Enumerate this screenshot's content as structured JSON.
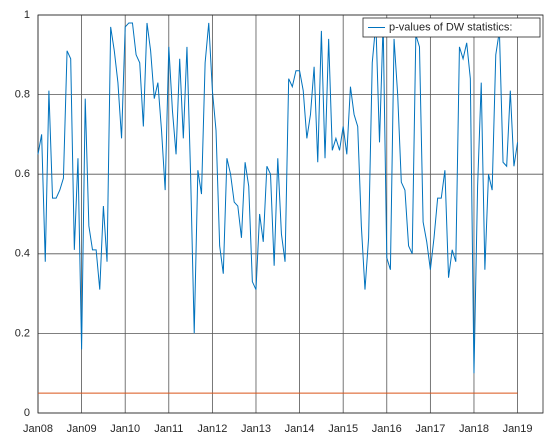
{
  "chart_data": {
    "type": "line",
    "x": [
      0,
      1,
      2,
      3,
      4,
      5,
      6,
      7,
      8,
      9,
      10,
      11,
      12,
      13,
      14,
      15,
      16,
      17,
      18,
      19,
      20,
      21,
      22,
      23,
      24,
      25,
      26,
      27,
      28,
      29,
      30,
      31,
      32,
      33,
      34,
      35,
      36,
      37,
      38,
      39,
      40,
      41,
      42,
      43,
      44,
      45,
      46,
      47,
      48,
      49,
      50,
      51,
      52,
      53,
      54,
      55,
      56,
      57,
      58,
      59,
      60,
      61,
      62,
      63,
      64,
      65,
      66,
      67,
      68,
      69,
      70,
      71,
      72,
      73,
      74,
      75,
      76,
      77,
      78,
      79,
      80,
      81,
      82,
      83,
      84,
      85,
      86,
      87,
      88,
      89,
      90,
      91,
      92,
      93,
      94,
      95,
      96,
      97,
      98,
      99,
      100,
      101,
      102,
      103,
      104,
      105,
      106,
      107,
      108,
      109,
      110,
      111,
      112,
      113,
      114,
      115,
      116,
      117,
      118,
      119,
      120,
      121,
      122,
      123,
      124,
      125,
      126,
      127,
      128,
      129,
      130,
      131,
      132
    ],
    "series": [
      {
        "name": "p-values of DW statistics:",
        "color": "#0072bd",
        "values": [
          0.65,
          0.7,
          0.38,
          0.81,
          0.54,
          0.54,
          0.56,
          0.59,
          0.91,
          0.89,
          0.41,
          0.64,
          0.16,
          0.79,
          0.47,
          0.41,
          0.41,
          0.31,
          0.52,
          0.38,
          0.97,
          0.91,
          0.83,
          0.69,
          0.97,
          0.98,
          0.98,
          0.9,
          0.88,
          0.72,
          0.98,
          0.91,
          0.79,
          0.83,
          0.71,
          0.56,
          0.92,
          0.76,
          0.65,
          0.89,
          0.69,
          0.92,
          0.6,
          0.2,
          0.61,
          0.55,
          0.88,
          0.98,
          0.81,
          0.71,
          0.42,
          0.35,
          0.64,
          0.6,
          0.53,
          0.52,
          0.44,
          0.63,
          0.57,
          0.33,
          0.31,
          0.5,
          0.43,
          0.62,
          0.6,
          0.37,
          0.64,
          0.45,
          0.38,
          0.84,
          0.82,
          0.86,
          0.86,
          0.81,
          0.69,
          0.75,
          0.87,
          0.63,
          0.96,
          0.64,
          0.94,
          0.66,
          0.69,
          0.66,
          0.72,
          0.65,
          0.82,
          0.75,
          0.72,
          0.47,
          0.31,
          0.44,
          0.88,
          0.98,
          0.68,
          0.98,
          0.39,
          0.36,
          0.94,
          0.8,
          0.58,
          0.56,
          0.42,
          0.4,
          0.95,
          0.92,
          0.48,
          0.43,
          0.36,
          0.44,
          0.54,
          0.54,
          0.61,
          0.34,
          0.41,
          0.38,
          0.92,
          0.89,
          0.93,
          0.84,
          0.1,
          0.57,
          0.83,
          0.36,
          0.6,
          0.56,
          0.9,
          0.96,
          0.63,
          0.62,
          0.81,
          0.62,
          0.68
        ]
      }
    ],
    "reference_line": {
      "x": [
        0,
        132
      ],
      "values": [
        0.05,
        0.05
      ],
      "color": "#d95319"
    },
    "xlim": [
      0,
      139
    ],
    "ylim": [
      0,
      1
    ],
    "xticks": [
      {
        "value": 0,
        "label": "Jan08"
      },
      {
        "value": 12,
        "label": "Jan09"
      },
      {
        "value": 24,
        "label": "Jan10"
      },
      {
        "value": 36,
        "label": "Jan11"
      },
      {
        "value": 48,
        "label": "Jan12"
      },
      {
        "value": 60,
        "label": "Jan13"
      },
      {
        "value": 72,
        "label": "Jan14"
      },
      {
        "value": 84,
        "label": "Jan15"
      },
      {
        "value": 96,
        "label": "Jan16"
      },
      {
        "value": 108,
        "label": "Jan17"
      },
      {
        "value": 120,
        "label": "Jan18"
      },
      {
        "value": 132,
        "label": "Jan19"
      }
    ],
    "yticks": [
      0,
      0.2,
      0.4,
      0.6,
      0.8,
      1
    ],
    "grid": true,
    "legend": "top-right"
  }
}
